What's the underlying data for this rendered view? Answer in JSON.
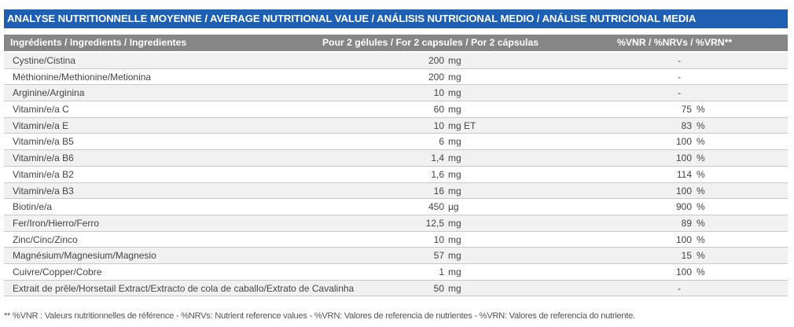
{
  "title": "ANALYSE NUTRITIONNELLE MOYENNE / AVERAGE NUTRITIONAL VALUE / ANÁLISIS NUTRICIONAL MEDIO / ANÁLISE NUTRICIONAL MEDIA",
  "header": {
    "ingredients": "Ingrédients / Ingredients / Ingredientes",
    "amount": "Pour 2 gélules / For 2 capsules / Por 2 cápsulas",
    "nrv": "%VNR / %NRVs / %VRN**"
  },
  "rows": [
    {
      "name": "Cystine/Cistina",
      "amount": "200",
      "unit": "mg",
      "nrv": "-",
      "nrv_unit": ""
    },
    {
      "name": "Méthionine/Methionine/Metionina",
      "amount": "200",
      "unit": "mg",
      "nrv": "-",
      "nrv_unit": ""
    },
    {
      "name": "Arginine/Arginina",
      "amount": "10",
      "unit": "mg",
      "nrv": "-",
      "nrv_unit": ""
    },
    {
      "name": "Vitamin/e/a C",
      "amount": "60",
      "unit": "mg",
      "nrv": "75",
      "nrv_unit": "%"
    },
    {
      "name": "Vitamin/e/a E",
      "amount": "10",
      "unit": "mg ET",
      "nrv": "83",
      "nrv_unit": "%"
    },
    {
      "name": "Vitamin/e/a B5",
      "amount": "6",
      "unit": "mg",
      "nrv": "100",
      "nrv_unit": "%"
    },
    {
      "name": "Vitamin/e/a B6",
      "amount": "1,4",
      "unit": "mg",
      "nrv": "100",
      "nrv_unit": "%"
    },
    {
      "name": "Vitamin/e/a B2",
      "amount": "1,6",
      "unit": "mg",
      "nrv": "114",
      "nrv_unit": "%"
    },
    {
      "name": "Vitamin/e/a B3",
      "amount": "16",
      "unit": "mg",
      "nrv": "100",
      "nrv_unit": "%"
    },
    {
      "name": "Biotin/e/a",
      "amount": "450",
      "unit": "µg",
      "nrv": "900",
      "nrv_unit": "%"
    },
    {
      "name": "Fer/Iron/Hierro/Ferro",
      "amount": "12,5",
      "unit": "mg",
      "nrv": "89",
      "nrv_unit": "%"
    },
    {
      "name": "Zinc/Cinc/Zinco",
      "amount": "10",
      "unit": "mg",
      "nrv": "100",
      "nrv_unit": "%"
    },
    {
      "name": "Magnésium/Magnesium/Magnesio",
      "amount": "57",
      "unit": "mg",
      "nrv": "15",
      "nrv_unit": "%"
    },
    {
      "name": "Cuivre/Copper/Cobre",
      "amount": "1",
      "unit": "mg",
      "nrv": "100",
      "nrv_unit": "%"
    },
    {
      "name": "Extrait de prêle/Horsetail Extract/Extracto de cola de caballo/Extrato de Cavalinha",
      "amount": "50",
      "unit": "mg",
      "nrv": "-",
      "nrv_unit": ""
    }
  ],
  "footnote": "** %VNR : Valeurs nutritionnelles de référence - %NRVs: Nutrient reference values - %VRN: Valores de referencia de nutrientes - %VRN: Valores de referencia do nutriente.",
  "colors": {
    "title_bg": "#1f5fb3",
    "header_bg": "#868686",
    "row_alt_bg": "#f1f1f1",
    "text": "#444444"
  }
}
